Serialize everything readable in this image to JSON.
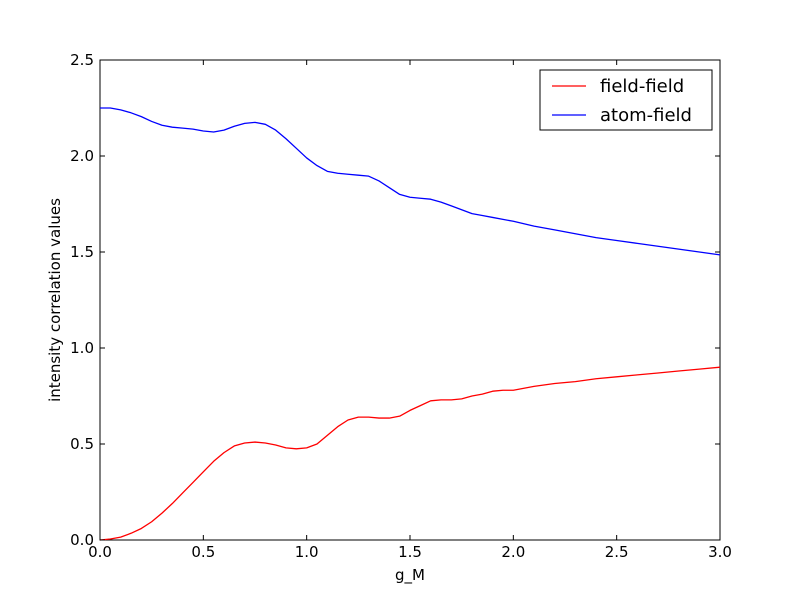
{
  "chart_data": {
    "type": "line",
    "title": "",
    "xlabel": "g_M",
    "ylabel": "intensity correlation values",
    "xlim": [
      0.0,
      3.0
    ],
    "ylim": [
      0.0,
      2.5
    ],
    "x_ticks": [
      "0.0",
      "0.5",
      "1.0",
      "1.5",
      "2.0",
      "2.5",
      "3.0"
    ],
    "y_ticks": [
      "0.0",
      "0.5",
      "1.0",
      "1.5",
      "2.0",
      "2.5"
    ],
    "grid": false,
    "legend_position": "top-right",
    "series": [
      {
        "name": "field-field",
        "color": "#ff0000",
        "x": [
          0.0,
          0.05,
          0.1,
          0.15,
          0.2,
          0.25,
          0.3,
          0.35,
          0.4,
          0.45,
          0.5,
          0.55,
          0.6,
          0.65,
          0.7,
          0.75,
          0.8,
          0.85,
          0.9,
          0.95,
          1.0,
          1.05,
          1.1,
          1.15,
          1.2,
          1.25,
          1.3,
          1.35,
          1.4,
          1.45,
          1.5,
          1.55,
          1.6,
          1.65,
          1.7,
          1.75,
          1.8,
          1.85,
          1.9,
          1.95,
          2.0,
          2.1,
          2.2,
          2.3,
          2.4,
          2.5,
          2.6,
          2.7,
          2.8,
          2.9,
          3.0
        ],
        "y": [
          0.0,
          0.005,
          0.015,
          0.035,
          0.06,
          0.095,
          0.14,
          0.19,
          0.245,
          0.3,
          0.355,
          0.41,
          0.455,
          0.49,
          0.505,
          0.51,
          0.505,
          0.495,
          0.48,
          0.475,
          0.48,
          0.5,
          0.545,
          0.59,
          0.625,
          0.64,
          0.64,
          0.635,
          0.635,
          0.645,
          0.675,
          0.7,
          0.725,
          0.73,
          0.73,
          0.735,
          0.75,
          0.76,
          0.775,
          0.78,
          0.78,
          0.8,
          0.815,
          0.825,
          0.84,
          0.85,
          0.86,
          0.87,
          0.88,
          0.89,
          0.9
        ]
      },
      {
        "name": "atom-field",
        "color": "#0000ff",
        "x": [
          0.0,
          0.05,
          0.1,
          0.15,
          0.2,
          0.25,
          0.3,
          0.35,
          0.4,
          0.45,
          0.5,
          0.55,
          0.6,
          0.65,
          0.7,
          0.75,
          0.8,
          0.85,
          0.9,
          0.95,
          1.0,
          1.05,
          1.1,
          1.15,
          1.2,
          1.25,
          1.3,
          1.35,
          1.4,
          1.45,
          1.5,
          1.55,
          1.6,
          1.65,
          1.7,
          1.75,
          1.8,
          1.85,
          1.9,
          1.95,
          2.0,
          2.1,
          2.2,
          2.3,
          2.4,
          2.5,
          2.6,
          2.7,
          2.8,
          2.9,
          3.0
        ],
        "y": [
          2.25,
          2.25,
          2.24,
          2.225,
          2.205,
          2.18,
          2.16,
          2.15,
          2.145,
          2.14,
          2.13,
          2.125,
          2.135,
          2.155,
          2.17,
          2.175,
          2.165,
          2.135,
          2.09,
          2.04,
          1.99,
          1.95,
          1.92,
          1.91,
          1.905,
          1.9,
          1.895,
          1.87,
          1.835,
          1.8,
          1.785,
          1.78,
          1.775,
          1.76,
          1.74,
          1.72,
          1.7,
          1.69,
          1.68,
          1.67,
          1.66,
          1.635,
          1.615,
          1.595,
          1.575,
          1.56,
          1.545,
          1.53,
          1.515,
          1.5,
          1.485
        ]
      }
    ]
  }
}
